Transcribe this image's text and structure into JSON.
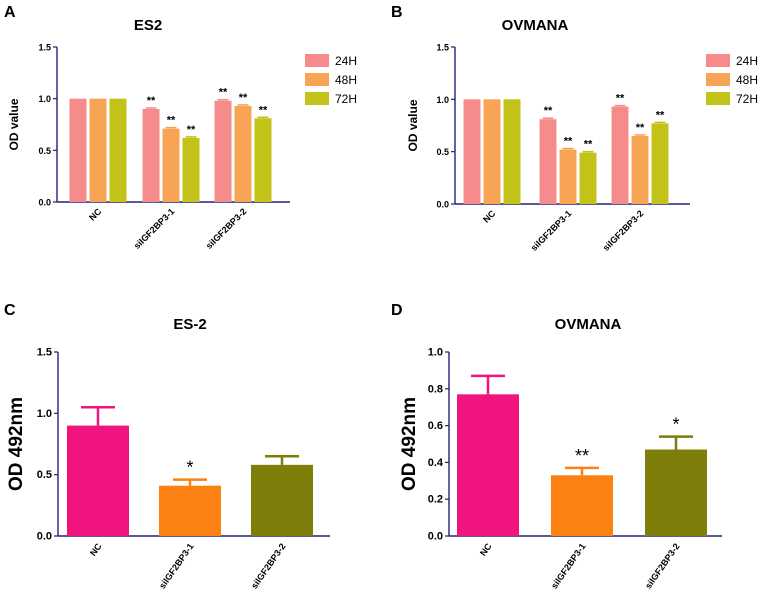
{
  "chart_data": [
    {
      "panel": "A",
      "type": "bar",
      "title": "ES2",
      "ylabel": "OD value",
      "xlabel": "",
      "ylim": [
        0,
        1.5
      ],
      "yticks": [
        "0.0",
        "0.5",
        "1.0",
        "1.5"
      ],
      "categories": [
        "NC",
        "siIGF2BP3-1",
        "siIGF2BP3-2"
      ],
      "series": [
        {
          "name": "24H",
          "color": "#f68b8b",
          "values": [
            1.0,
            0.9,
            0.98
          ],
          "errors": [
            0,
            0.01,
            0.01
          ],
          "sig": [
            "",
            "**",
            "**"
          ]
        },
        {
          "name": "48H",
          "color": "#f7a455",
          "values": [
            1.0,
            0.71,
            0.93
          ],
          "errors": [
            0,
            0.01,
            0.01
          ],
          "sig": [
            "",
            "**",
            "**"
          ]
        },
        {
          "name": "72H",
          "color": "#c3c219",
          "values": [
            1.0,
            0.62,
            0.81
          ],
          "errors": [
            0,
            0.01,
            0.01
          ],
          "sig": [
            "",
            "**",
            "**"
          ]
        }
      ],
      "legend": "top-right"
    },
    {
      "panel": "B",
      "type": "bar",
      "title": "OVMANA",
      "ylabel": "OD value",
      "xlabel": "",
      "ylim": [
        0,
        1.5
      ],
      "yticks": [
        "0.0",
        "0.5",
        "1.0",
        "1.5"
      ],
      "categories": [
        "NC",
        "siIGF2BP3-1",
        "siIGF2BP3-2"
      ],
      "series": [
        {
          "name": "24H",
          "color": "#f68b8b",
          "values": [
            1.0,
            0.81,
            0.93
          ],
          "errors": [
            0,
            0.01,
            0.01
          ],
          "sig": [
            "",
            "**",
            "**"
          ]
        },
        {
          "name": "48H",
          "color": "#f7a455",
          "values": [
            1.0,
            0.52,
            0.65
          ],
          "errors": [
            0,
            0.01,
            0.01
          ],
          "sig": [
            "",
            "**",
            "**"
          ]
        },
        {
          "name": "72H",
          "color": "#c3c219",
          "values": [
            1.0,
            0.49,
            0.77
          ],
          "errors": [
            0,
            0.01,
            0.01
          ],
          "sig": [
            "",
            "**",
            "**"
          ]
        }
      ],
      "legend": "top-right"
    },
    {
      "panel": "C",
      "type": "bar",
      "title": "ES-2",
      "ylabel": "OD 492nm",
      "xlabel": "",
      "ylim": [
        0,
        1.5
      ],
      "yticks": [
        "0.0",
        "0.5",
        "1.0",
        "1.5"
      ],
      "categories": [
        "NC",
        "siIGF2BP3-1",
        "siIGF2BP3-2"
      ],
      "colors": [
        "#f0147e",
        "#fb8113",
        "#7d7d0a"
      ],
      "values": [
        0.9,
        0.41,
        0.58
      ],
      "errors": [
        0.15,
        0.05,
        0.07
      ],
      "sig": [
        "",
        "*",
        ""
      ]
    },
    {
      "panel": "D",
      "type": "bar",
      "title": "OVMANA",
      "ylabel": "OD 492nm",
      "xlabel": "",
      "ylim": [
        0,
        1.0
      ],
      "yticks": [
        "0.0",
        "0.2",
        "0.4",
        "0.6",
        "0.8",
        "1.0"
      ],
      "categories": [
        "NC",
        "siIGF2BP3-1",
        "siIGF2BP3-2"
      ],
      "colors": [
        "#f0147e",
        "#fb8113",
        "#7d7d0a"
      ],
      "values": [
        0.77,
        0.33,
        0.47
      ],
      "errors": [
        0.1,
        0.04,
        0.07
      ],
      "sig": [
        "",
        "**",
        "*"
      ]
    }
  ],
  "colors": {
    "axis": "#22227a",
    "text": "#000000"
  }
}
